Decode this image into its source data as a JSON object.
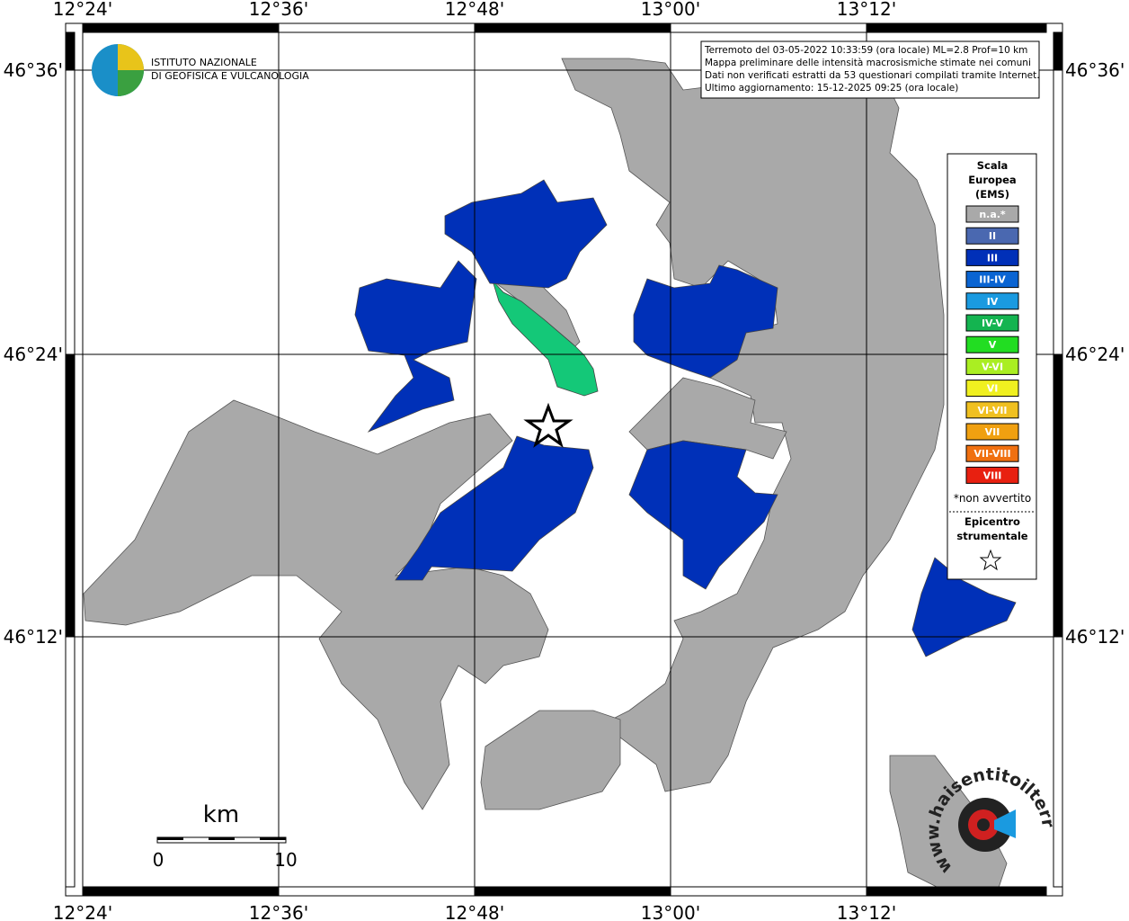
{
  "map": {
    "lon_labels": [
      "12°24'",
      "12°36'",
      "12°48'",
      "13°00'",
      "13°12'"
    ],
    "lat_labels": [
      "46°36'",
      "46°24'",
      "46°12'"
    ],
    "logo": [
      "ISTITUTO NAZIONALE",
      "DI GEOFISICA E VULCANOLOGIA"
    ],
    "info": [
      "Terremoto del 03-05-2022 10:33:59 (ora locale) ML=2.8 Prof=10 km",
      "Mappa preliminare delle intensità macrosismiche stimate nei comuni",
      "Dati non verificati estratti da 53 questionari compilati tramite Internet.",
      "Ultimo aggiornamento: 15-12-2025 09:25 (ora locale)"
    ],
    "legend": {
      "title": [
        "Scala",
        "Europea",
        "(EMS)"
      ],
      "items": [
        {
          "label": "n.a.*",
          "color": "#a9a9a9"
        },
        {
          "label": "II",
          "color": "#4a68b0"
        },
        {
          "label": "III",
          "color": "#0030b8"
        },
        {
          "label": "III-IV",
          "color": "#0a64d2"
        },
        {
          "label": "IV",
          "color": "#1a9ae0"
        },
        {
          "label": "IV-V",
          "color": "#14b450"
        },
        {
          "label": "V",
          "color": "#22dd22"
        },
        {
          "label": "V-VI",
          "color": "#aaee22"
        },
        {
          "label": "VI",
          "color": "#f0f020"
        },
        {
          "label": "VI-VII",
          "color": "#f0c020"
        },
        {
          "label": "VII",
          "color": "#f0a010"
        },
        {
          "label": "VII-VIII",
          "color": "#f07010"
        },
        {
          "label": "VIII",
          "color": "#e82010"
        }
      ],
      "note": "*non avvertito",
      "epicenter": [
        "Epicentro",
        "strumentale"
      ]
    },
    "scale": {
      "unit": "km",
      "labels": [
        "0",
        "10"
      ]
    },
    "site": "www.haisentitoilterremoto.it"
  }
}
